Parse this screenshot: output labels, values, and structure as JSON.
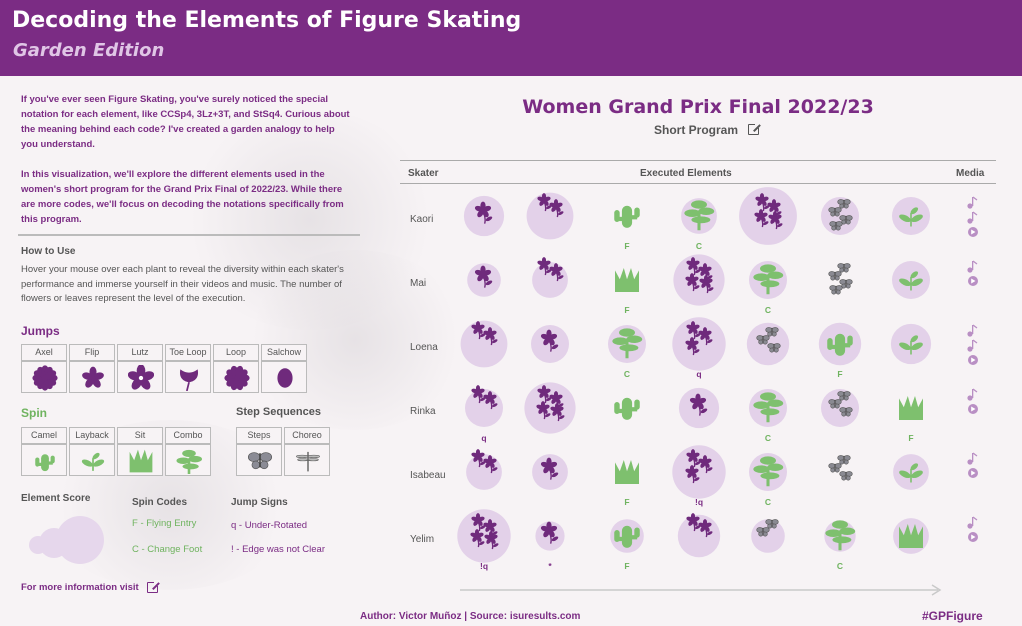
{
  "header": {
    "title": "Decoding the Elements of Figure Skating",
    "subtitle": "Garden Edition"
  },
  "intro": {
    "p1": "If you've ever seen Figure Skating, you've surely noticed the special notation for each element, like CCSp4, 3Lz+3T, and StSq4. Curious about the meaning behind each code? I've created a garden analogy to help you understand.",
    "p2": "In this visualization, we'll explore the different elements used in the women's short program for the Grand Prix Final of 2022/23. While there are more codes, we'll focus on decoding the notations specifically from this program."
  },
  "how_to_use": {
    "heading": "How to Use",
    "text": "Hover your mouse over each plant to reveal the diversity within each skater's performance and immerse yourself in their videos and music. The number of flowers or leaves represent the level of the execution."
  },
  "legend": {
    "jumps_title": "Jumps",
    "jumps": [
      {
        "label": "Axel",
        "icon": "gerbera-icon"
      },
      {
        "label": "Flip",
        "icon": "star-flower-icon"
      },
      {
        "label": "Lutz",
        "icon": "violet-icon"
      },
      {
        "label": "Toe Loop",
        "icon": "tulip-icon"
      },
      {
        "label": "Loop",
        "icon": "daisy-icon"
      },
      {
        "label": "Salchow",
        "icon": "bud-icon"
      }
    ],
    "spin_title": "Spin",
    "spins": [
      {
        "label": "Camel",
        "icon": "cactus-icon"
      },
      {
        "label": "Layback",
        "icon": "sprout-icon"
      },
      {
        "label": "Sit",
        "icon": "grass-icon"
      },
      {
        "label": "Combo",
        "icon": "tree-icon"
      }
    ],
    "steps_title": "Step Sequences",
    "steps": [
      {
        "label": "Steps",
        "icon": "butterfly-icon"
      },
      {
        "label": "Choreo",
        "icon": "dragonfly-icon"
      }
    ],
    "score_title": "Element Score",
    "spin_codes_title": "Spin Codes",
    "spin_codes": [
      "F - Flying Entry",
      "C - Change Foot"
    ],
    "jump_signs_title": "Jump Signs",
    "jump_signs": [
      "q - Under-Rotated",
      "! - Edge was not Clear"
    ]
  },
  "more_info": "For more information visit",
  "chart": {
    "title": "Women Grand Prix Final 2022/23",
    "subtitle": "Short Program",
    "col_skater": "Skater",
    "col_elements": "Executed Elements",
    "col_media": "Media"
  },
  "chart_data": {
    "type": "table",
    "skaters": [
      {
        "name": "Kaori",
        "media": [
          "music",
          "music",
          "video"
        ],
        "elements": [
          {
            "plant": "violet",
            "count": 1,
            "halo": 0.55,
            "code": ""
          },
          {
            "plant": "violet",
            "count": 2,
            "halo": 0.7,
            "code": ""
          },
          {
            "plant": "cactus",
            "count": 1,
            "halo": 0,
            "code": "F"
          },
          {
            "plant": "tree",
            "count": 1,
            "halo": 0.45,
            "code": "C"
          },
          {
            "plant": "violet",
            "count": 4,
            "halo": 0.95,
            "code": ""
          },
          {
            "plant": "butterfly",
            "count": 4,
            "halo": 0.5,
            "code": ""
          },
          {
            "plant": "sprout",
            "count": 1,
            "halo": 0.5,
            "code": ""
          }
        ]
      },
      {
        "name": "Mai",
        "media": [
          "music",
          "video"
        ],
        "elements": [
          {
            "plant": "violet",
            "count": 1,
            "halo": 0.4,
            "code": ""
          },
          {
            "plant": "violet",
            "count": 2,
            "halo": 0.45,
            "code": ""
          },
          {
            "plant": "grass",
            "count": 1,
            "halo": 0,
            "code": "F"
          },
          {
            "plant": "violet",
            "count": 4,
            "halo": 0.8,
            "code": ""
          },
          {
            "plant": "tree",
            "count": 1,
            "halo": 0.5,
            "code": "C"
          },
          {
            "plant": "butterfly",
            "count": 4,
            "halo": 0,
            "code": ""
          },
          {
            "plant": "sprout",
            "count": 1,
            "halo": 0.5,
            "code": ""
          }
        ]
      },
      {
        "name": "Loena",
        "media": [
          "music",
          "music",
          "video"
        ],
        "elements": [
          {
            "plant": "violet",
            "count": 2,
            "halo": 0.7,
            "code": ""
          },
          {
            "plant": "violet",
            "count": 1,
            "halo": 0.5,
            "code": ""
          },
          {
            "plant": "tree",
            "count": 1,
            "halo": 0.5,
            "code": "C"
          },
          {
            "plant": "violet",
            "count": 3,
            "halo": 0.85,
            "code": "q"
          },
          {
            "plant": "butterfly",
            "count": 3,
            "halo": 0.6,
            "code": ""
          },
          {
            "plant": "cactus",
            "count": 1,
            "halo": 0.6,
            "code": "F"
          },
          {
            "plant": "sprout",
            "count": 1,
            "halo": 0.55,
            "code": ""
          }
        ]
      },
      {
        "name": "Rinka",
        "media": [
          "music",
          "video"
        ],
        "elements": [
          {
            "plant": "violet",
            "count": 2,
            "halo": 0.5,
            "code": "q"
          },
          {
            "plant": "violet",
            "count": 4,
            "halo": 0.8,
            "code": ""
          },
          {
            "plant": "cactus",
            "count": 1,
            "halo": 0,
            "code": ""
          },
          {
            "plant": "violet",
            "count": 1,
            "halo": 0.55,
            "code": ""
          },
          {
            "plant": "tree",
            "count": 1,
            "halo": 0.5,
            "code": "C"
          },
          {
            "plant": "butterfly",
            "count": 3,
            "halo": 0.5,
            "code": ""
          },
          {
            "plant": "grass",
            "count": 1,
            "halo": 0,
            "code": "F"
          }
        ]
      },
      {
        "name": "Isabeau",
        "media": [
          "music",
          "video"
        ],
        "elements": [
          {
            "plant": "violet",
            "count": 2,
            "halo": 0.45,
            "code": ""
          },
          {
            "plant": "violet",
            "count": 1,
            "halo": 0.45,
            "code": ""
          },
          {
            "plant": "grass",
            "count": 1,
            "halo": 0,
            "code": "F"
          },
          {
            "plant": "violet",
            "count": 3,
            "halo": 0.85,
            "code": "!q"
          },
          {
            "plant": "tree",
            "count": 1,
            "halo": 0.5,
            "code": "C"
          },
          {
            "plant": "butterfly",
            "count": 3,
            "halo": 0,
            "code": ""
          },
          {
            "plant": "sprout",
            "count": 1,
            "halo": 0.45,
            "code": ""
          }
        ]
      },
      {
        "name": "Yelim",
        "media": [
          "music",
          "video"
        ],
        "elements": [
          {
            "plant": "violet",
            "count": 4,
            "halo": 0.85,
            "code": "!q"
          },
          {
            "plant": "violet",
            "count": 1,
            "halo": 0.3,
            "code": "*"
          },
          {
            "plant": "cactus",
            "count": 1,
            "halo": 0.4,
            "code": "F"
          },
          {
            "plant": "violet",
            "count": 2,
            "halo": 0.6,
            "code": ""
          },
          {
            "plant": "butterfly",
            "count": 2,
            "halo": 0.4,
            "code": ""
          },
          {
            "plant": "tree",
            "count": 1,
            "halo": 0.35,
            "code": "C"
          },
          {
            "plant": "grass",
            "count": 1,
            "halo": 0.45,
            "code": ""
          }
        ]
      }
    ]
  },
  "footer": {
    "credit": "Author: Victor Muñoz | Source: isuresults.com",
    "hashtag": "#GPFigure"
  },
  "colors": {
    "purple": "#7b2c84",
    "plant_purple": "#6f2a7c",
    "halo": "#ddc8e6",
    "green": "#7ec06e",
    "grey_insect": "#8a8a92"
  }
}
